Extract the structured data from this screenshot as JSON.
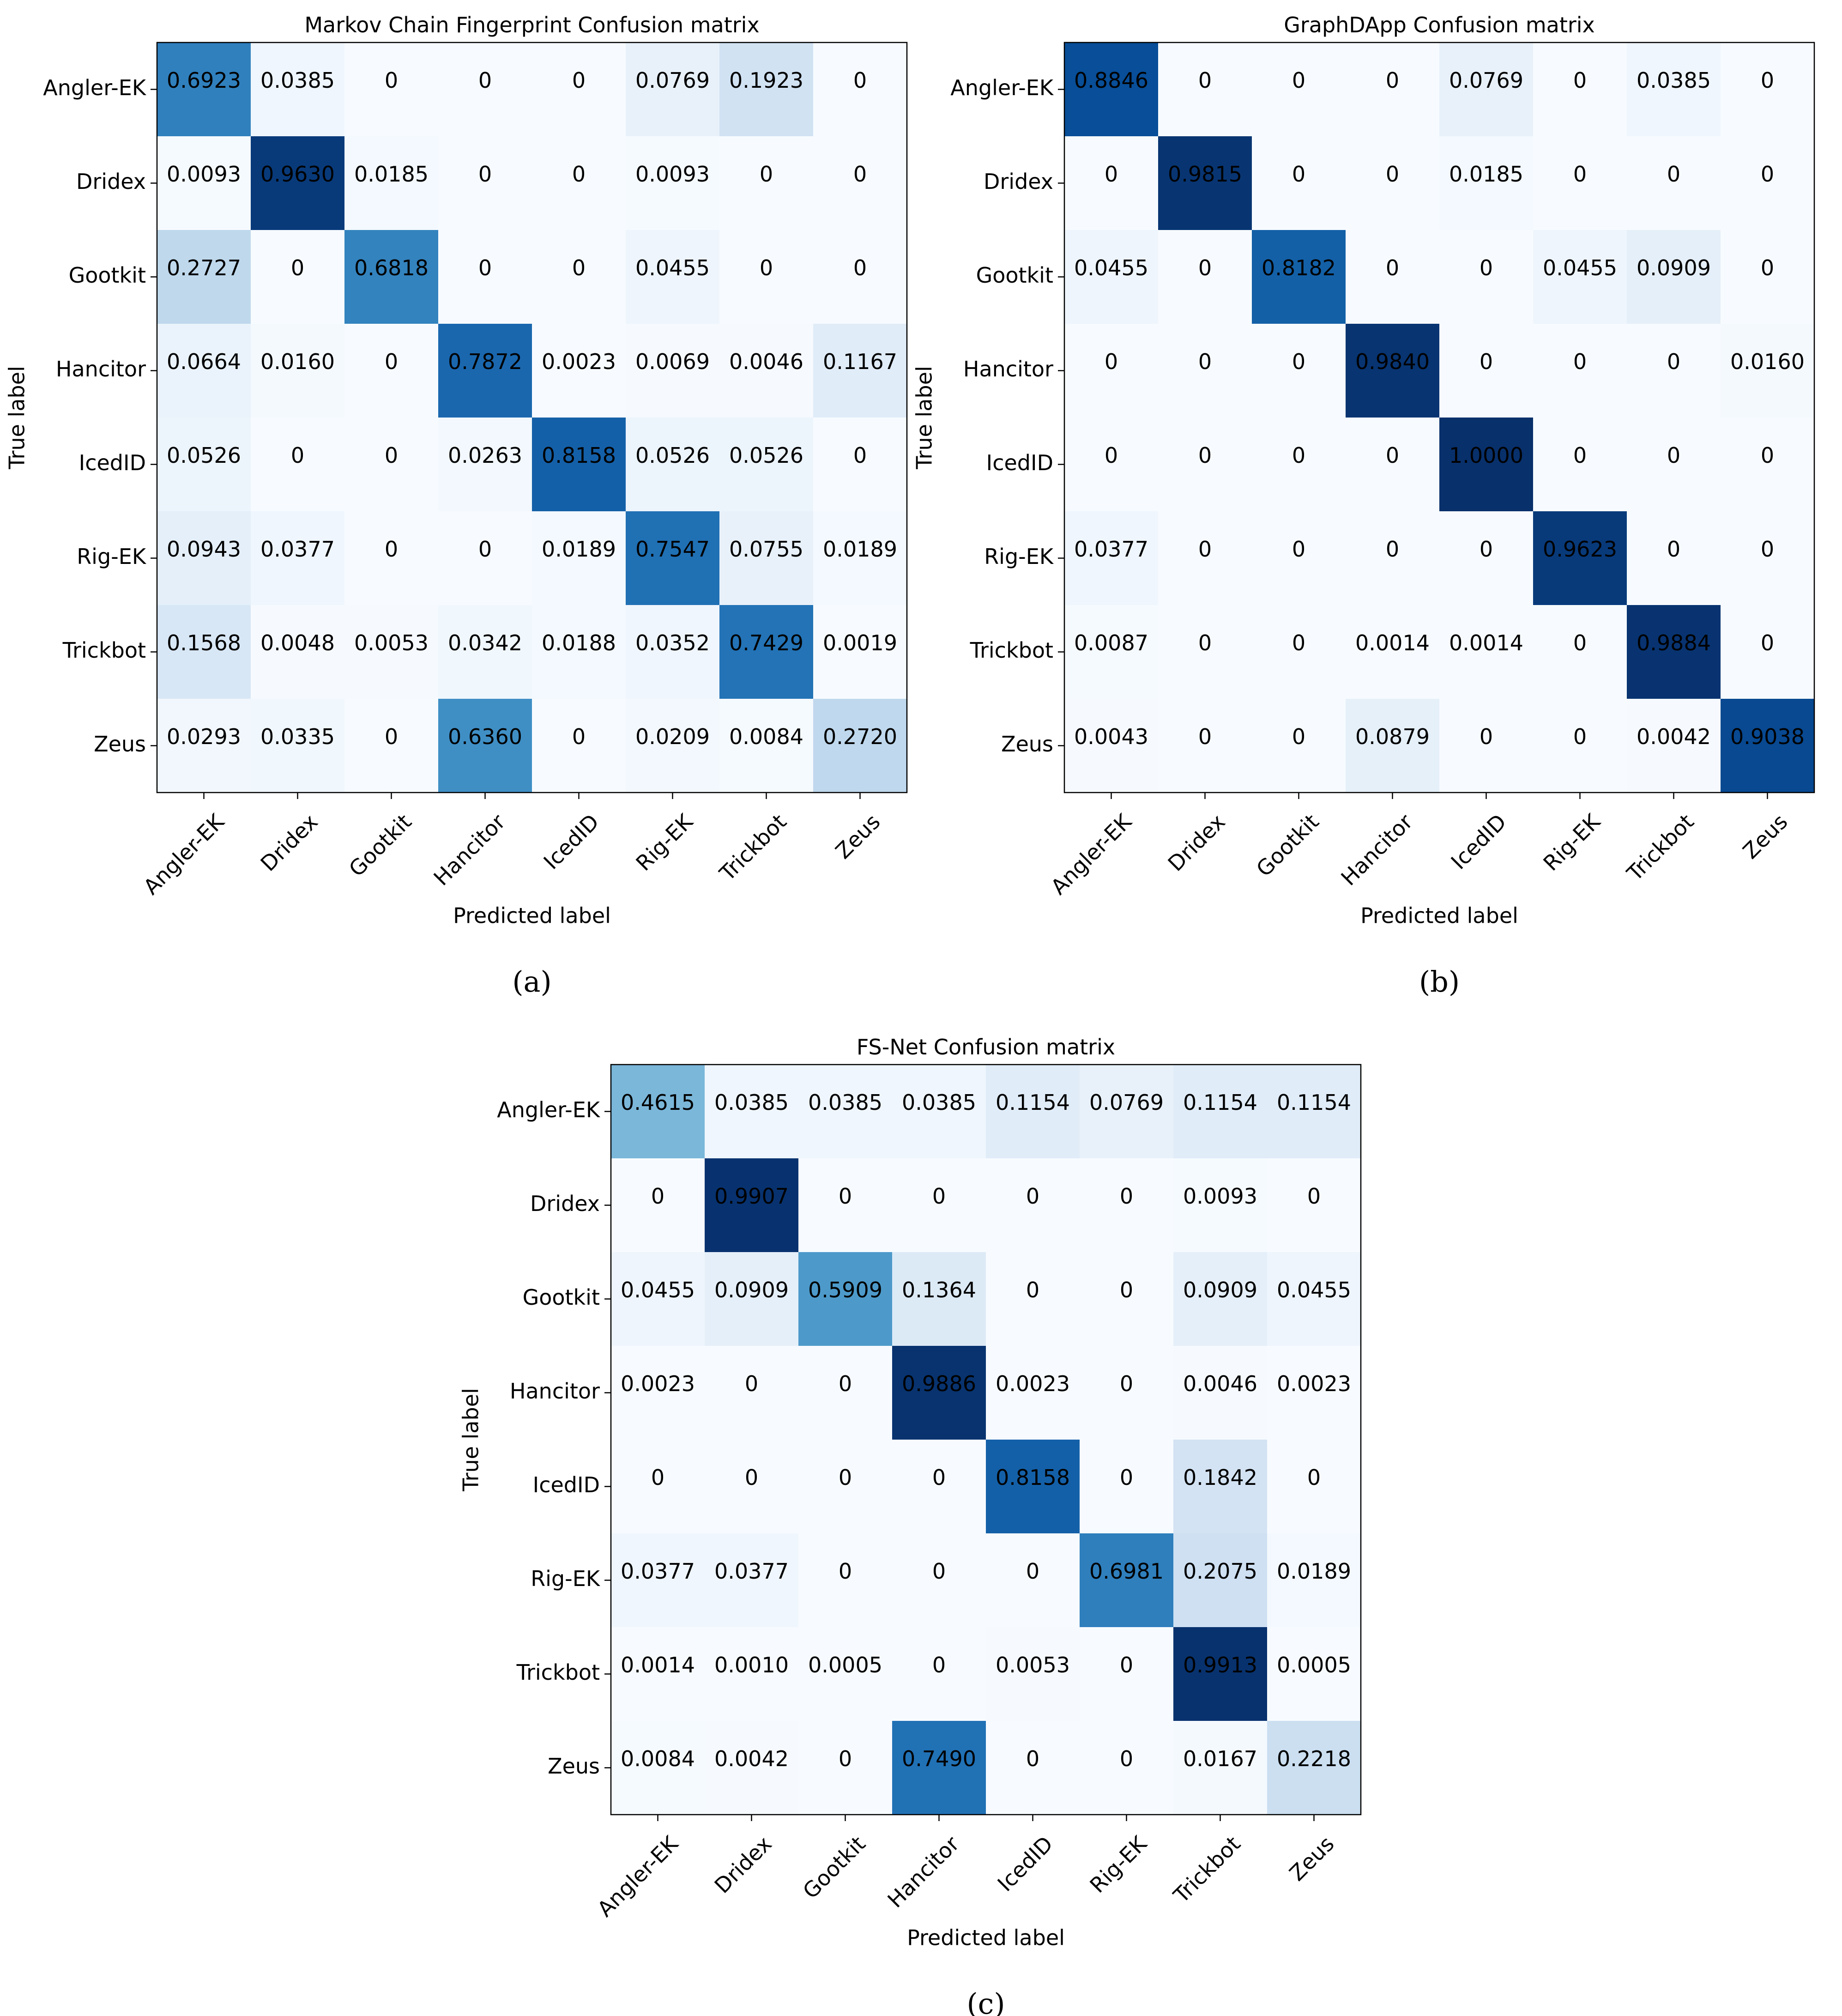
{
  "chart_data": [
    {
      "type": "heatmap",
      "title": "Markov Chain Fingerprint Confusion matrix",
      "caption": "(a)",
      "xlabel": "Predicted label",
      "ylabel": "True label",
      "x_categories": [
        "Angler-EK",
        "Dridex",
        "Gootkit",
        "Hancitor",
        "IcedID",
        "Rig-EK",
        "Trickbot",
        "Zeus"
      ],
      "y_categories": [
        "Angler-EK",
        "Dridex",
        "Gootkit",
        "Hancitor",
        "IcedID",
        "Rig-EK",
        "Trickbot",
        "Zeus"
      ],
      "colormap": "Blues",
      "value_range": [
        0,
        1
      ],
      "values": [
        [
          "0.6923",
          "0.0385",
          "0",
          "0",
          "0",
          "0.0769",
          "0.1923",
          "0"
        ],
        [
          "0.0093",
          "0.9630",
          "0.0185",
          "0",
          "0",
          "0.0093",
          "0",
          "0"
        ],
        [
          "0.2727",
          "0",
          "0.6818",
          "0",
          "0",
          "0.0455",
          "0",
          "0"
        ],
        [
          "0.0664",
          "0.0160",
          "0",
          "0.7872",
          "0.0023",
          "0.0069",
          "0.0046",
          "0.1167"
        ],
        [
          "0.0526",
          "0",
          "0",
          "0.0263",
          "0.8158",
          "0.0526",
          "0.0526",
          "0"
        ],
        [
          "0.0943",
          "0.0377",
          "0",
          "0",
          "0.0189",
          "0.7547",
          "0.0755",
          "0.0189"
        ],
        [
          "0.1568",
          "0.0048",
          "0.0053",
          "0.0342",
          "0.0188",
          "0.0352",
          "0.7429",
          "0.0019"
        ],
        [
          "0.0293",
          "0.0335",
          "0",
          "0.6360",
          "0",
          "0.0209",
          "0.0084",
          "0.2720"
        ]
      ]
    },
    {
      "type": "heatmap",
      "title": "GraphDApp Confusion matrix",
      "caption": "(b)",
      "xlabel": "Predicted label",
      "ylabel": "True label",
      "x_categories": [
        "Angler-EK",
        "Dridex",
        "Gootkit",
        "Hancitor",
        "IcedID",
        "Rig-EK",
        "Trickbot",
        "Zeus"
      ],
      "y_categories": [
        "Angler-EK",
        "Dridex",
        "Gootkit",
        "Hancitor",
        "IcedID",
        "Rig-EK",
        "Trickbot",
        "Zeus"
      ],
      "colormap": "Blues",
      "value_range": [
        0,
        1
      ],
      "values": [
        [
          "0.8846",
          "0",
          "0",
          "0",
          "0.0769",
          "0",
          "0.0385",
          "0"
        ],
        [
          "0",
          "0.9815",
          "0",
          "0",
          "0.0185",
          "0",
          "0",
          "0"
        ],
        [
          "0.0455",
          "0",
          "0.8182",
          "0",
          "0",
          "0.0455",
          "0.0909",
          "0"
        ],
        [
          "0",
          "0",
          "0",
          "0.9840",
          "0",
          "0",
          "0",
          "0.0160"
        ],
        [
          "0",
          "0",
          "0",
          "0",
          "1.0000",
          "0",
          "0",
          "0"
        ],
        [
          "0.0377",
          "0",
          "0",
          "0",
          "0",
          "0.9623",
          "0",
          "0"
        ],
        [
          "0.0087",
          "0",
          "0",
          "0.0014",
          "0.0014",
          "0",
          "0.9884",
          "0"
        ],
        [
          "0.0043",
          "0",
          "0",
          "0.0879",
          "0",
          "0",
          "0.0042",
          "0.9038"
        ]
      ]
    },
    {
      "type": "heatmap",
      "title": "FS-Net Confusion matrix",
      "caption": "(c)",
      "xlabel": "Predicted label",
      "ylabel": "True label",
      "x_categories": [
        "Angler-EK",
        "Dridex",
        "Gootkit",
        "Hancitor",
        "IcedID",
        "Rig-EK",
        "Trickbot",
        "Zeus"
      ],
      "y_categories": [
        "Angler-EK",
        "Dridex",
        "Gootkit",
        "Hancitor",
        "IcedID",
        "Rig-EK",
        "Trickbot",
        "Zeus"
      ],
      "colormap": "Blues",
      "value_range": [
        0,
        1
      ],
      "values": [
        [
          "0.4615",
          "0.0385",
          "0.0385",
          "0.0385",
          "0.1154",
          "0.0769",
          "0.1154",
          "0.1154"
        ],
        [
          "0",
          "0.9907",
          "0",
          "0",
          "0",
          "0",
          "0.0093",
          "0"
        ],
        [
          "0.0455",
          "0.0909",
          "0.5909",
          "0.1364",
          "0",
          "0",
          "0.0909",
          "0.0455"
        ],
        [
          "0.0023",
          "0",
          "0",
          "0.9886",
          "0.0023",
          "0",
          "0.0046",
          "0.0023"
        ],
        [
          "0",
          "0",
          "0",
          "0",
          "0.8158",
          "0",
          "0.1842",
          "0"
        ],
        [
          "0.0377",
          "0.0377",
          "0",
          "0",
          "0",
          "0.6981",
          "0.2075",
          "0.0189"
        ],
        [
          "0.0014",
          "0.0010",
          "0.0005",
          "0",
          "0.0053",
          "0",
          "0.9913",
          "0.0005"
        ],
        [
          "0.0084",
          "0.0042",
          "0",
          "0.7490",
          "0",
          "0",
          "0.0167",
          "0.2218"
        ]
      ]
    }
  ]
}
